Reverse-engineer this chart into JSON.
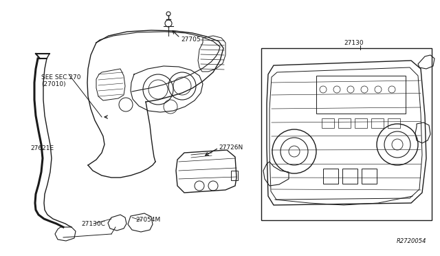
{
  "bg_color": "#ffffff",
  "line_color": "#1a1a1a",
  "text_color": "#111111",
  "font_size": 6.5,
  "labels": {
    "see_sec": "SEE SEC.270\n(27010)",
    "p27705": "27705",
    "p27621E": "27621E",
    "p27726N": "27726N",
    "p27130": "27130",
    "p27130C": "27130C",
    "p27054M": "27054M",
    "ref_code": "R2720054"
  }
}
